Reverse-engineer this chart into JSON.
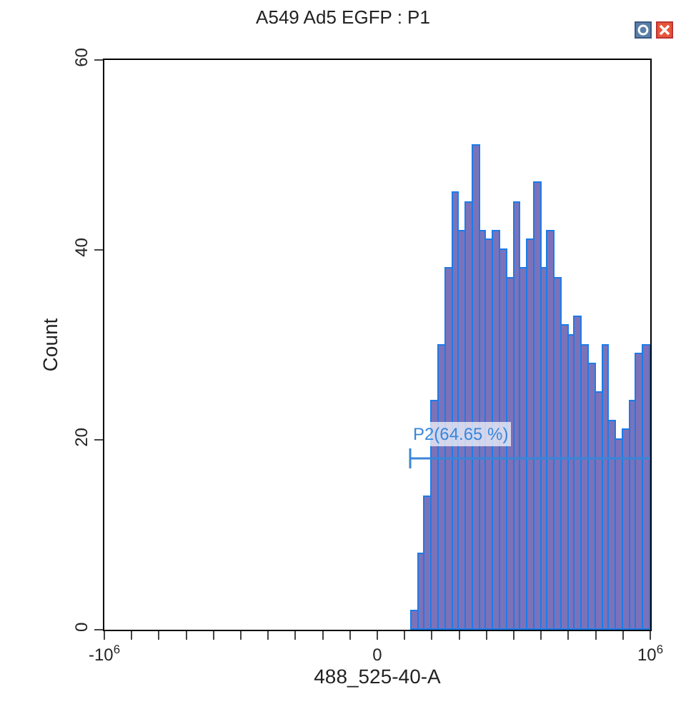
{
  "chart_data": {
    "type": "histogram",
    "title": "A549 Ad5 EGFP : P1",
    "xlabel": "488_525-40-A",
    "ylabel": "Count",
    "bins": [
      125000,
      150000,
      175000,
      200000,
      225000,
      250000,
      275000,
      300000,
      325000,
      350000,
      375000,
      400000,
      425000,
      450000,
      475000,
      500000,
      525000,
      550000,
      575000,
      600000,
      625000,
      650000,
      675000,
      700000,
      725000,
      750000,
      775000,
      800000,
      825000,
      850000,
      875000,
      900000,
      925000,
      950000,
      975000,
      1000000
    ],
    "values": [
      2,
      8,
      14,
      24,
      30,
      38,
      46,
      42,
      45,
      51,
      42,
      41,
      42,
      40,
      37,
      45,
      38,
      41,
      47,
      38,
      42,
      37,
      32,
      31,
      33,
      30,
      28,
      25,
      30,
      22,
      20,
      21,
      24,
      29,
      30
    ],
    "color": "#7b72b9",
    "xlim": [
      -1000000,
      1000000
    ],
    "ylim": [
      0,
      60
    ],
    "xticks": [
      {
        "value": -1000000,
        "label": "-10$^{6}$"
      },
      {
        "value": -900000,
        "label": null
      },
      {
        "value": -800000,
        "label": null
      },
      {
        "value": -700000,
        "label": null
      },
      {
        "value": -600000,
        "label": null
      },
      {
        "value": -500000,
        "label": null
      },
      {
        "value": -400000,
        "label": null
      },
      {
        "value": -300000,
        "label": null
      },
      {
        "value": -200000,
        "label": null
      },
      {
        "value": -100000,
        "label": null
      },
      0,
      {
        "value": 100000,
        "label": null
      },
      {
        "value": 200000,
        "label": null
      },
      {
        "value": 300000,
        "label": null
      },
      {
        "value": 400000,
        "label": null
      },
      {
        "value": 500000,
        "label": null
      },
      {
        "value": 600000,
        "label": null
      },
      {
        "value": 700000,
        "label": null
      },
      {
        "value": 800000,
        "label": null
      },
      {
        "value": 900000,
        "label": null
      },
      {
        "value": 1000000,
        "label": "10$^{6}$"
      }
    ],
    "yticks": [
      0,
      20,
      40,
      60
    ],
    "annotations": [
      "P2(64.65 %)"
    ]
  }
}
